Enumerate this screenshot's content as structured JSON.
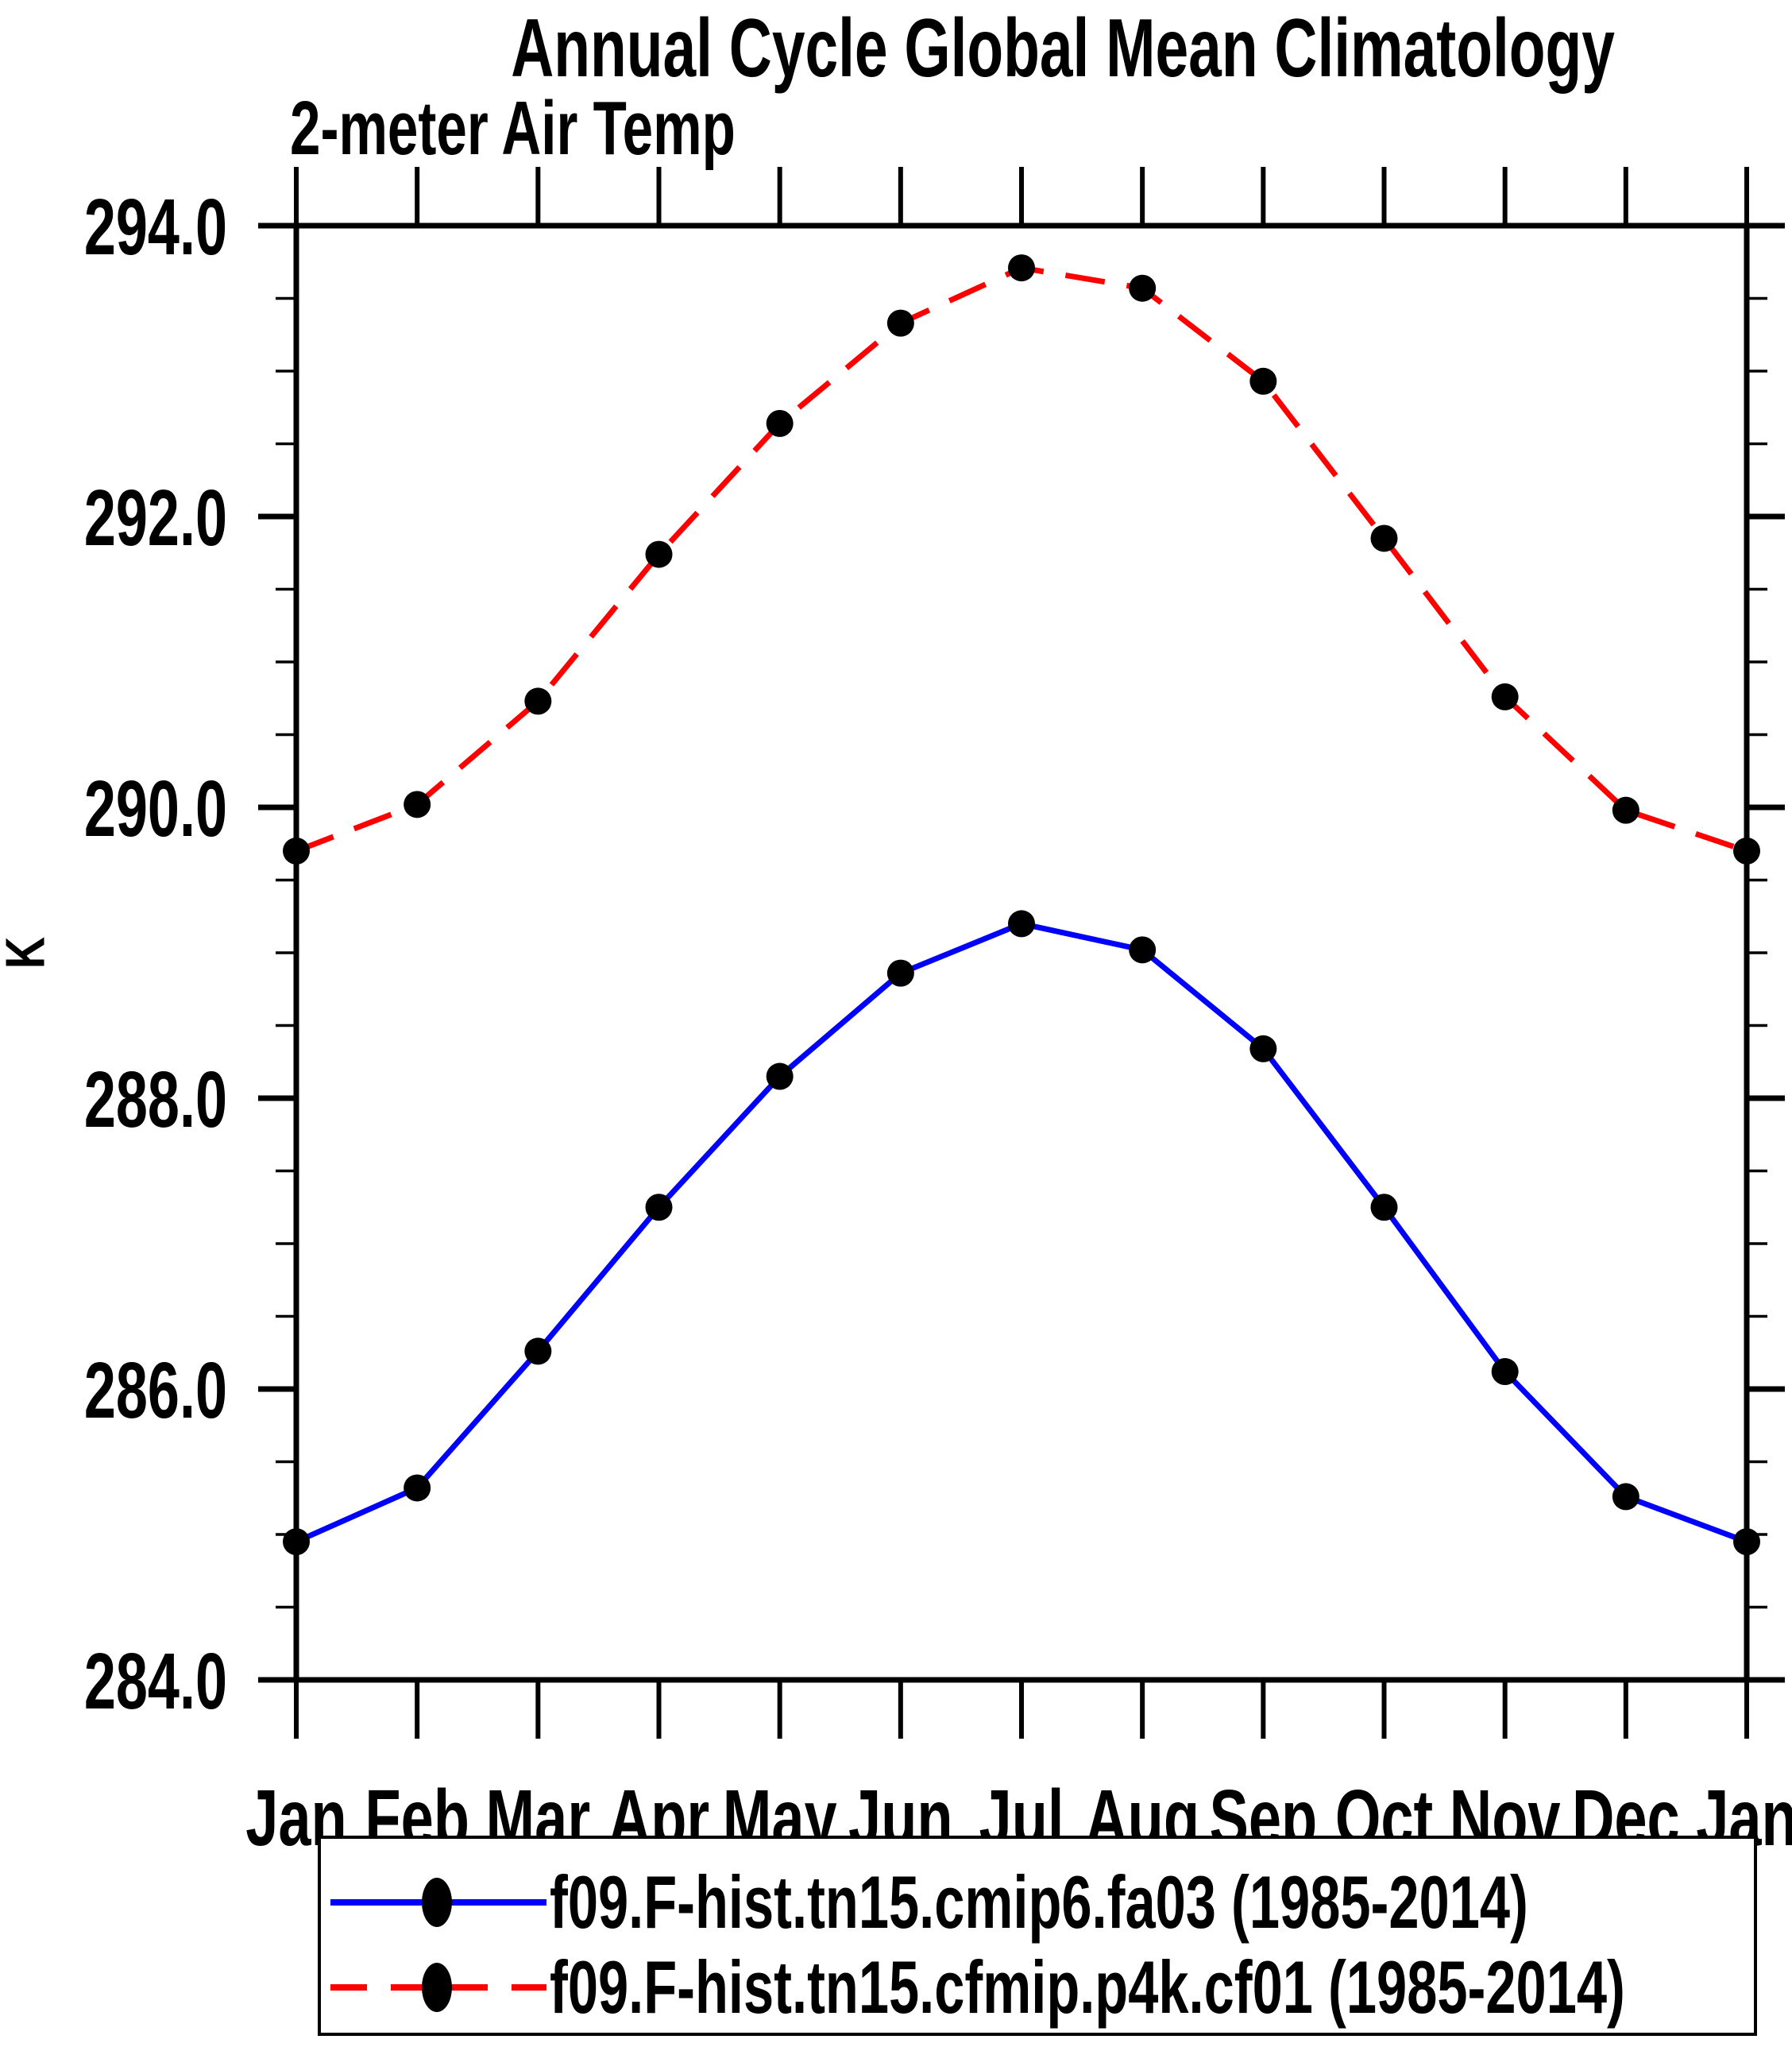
{
  "title": "Annual Cycle Global Mean Climatology",
  "subtitle": "2-meter Air Temp",
  "y_axis_label": "K",
  "colors": {
    "series1": "#0000ff",
    "series2": "#ff0000",
    "axis": "#000000",
    "marker": "#000000",
    "background": "#ffffff"
  },
  "chart_data": {
    "type": "line",
    "title": "Annual Cycle Global Mean Climatology",
    "subtitle": "2-meter Air Temp",
    "ylabel": "K",
    "xlabel": "",
    "categories": [
      "Jan",
      "Feb",
      "Mar",
      "Apr",
      "May",
      "Jun",
      "Jul",
      "Aug",
      "Sep",
      "Oct",
      "Nov",
      "Dec",
      "Jan"
    ],
    "series": [
      {
        "name": "f09.F-hist.tn15.cmip6.fa03 (1985-2014)",
        "color": "#0000ff",
        "line_style": "solid",
        "marker": "filled-circle",
        "marker_color": "#000000",
        "values": [
          284.95,
          285.32,
          286.26,
          287.25,
          288.15,
          288.86,
          289.2,
          289.02,
          288.34,
          287.25,
          286.12,
          285.26,
          284.95
        ]
      },
      {
        "name": "f09.F-hist.tn15.cfmip.p4k.cf01 (1985-2014)",
        "color": "#ff0000",
        "line_style": "dashed",
        "marker": "filled-circle",
        "marker_color": "#000000",
        "values": [
          289.7,
          290.02,
          290.73,
          291.74,
          292.64,
          293.33,
          293.71,
          293.57,
          292.93,
          291.85,
          290.76,
          289.98,
          289.7
        ]
      }
    ],
    "ylim": [
      284.0,
      294.0
    ],
    "ytick_major_labels": [
      "284.0",
      "286.0",
      "288.0",
      "290.0",
      "292.0",
      "294.0"
    ],
    "ytick_major_step": 2.0,
    "ytick_minor_step": 0.5,
    "grid": false,
    "legend_position": "bottom"
  }
}
